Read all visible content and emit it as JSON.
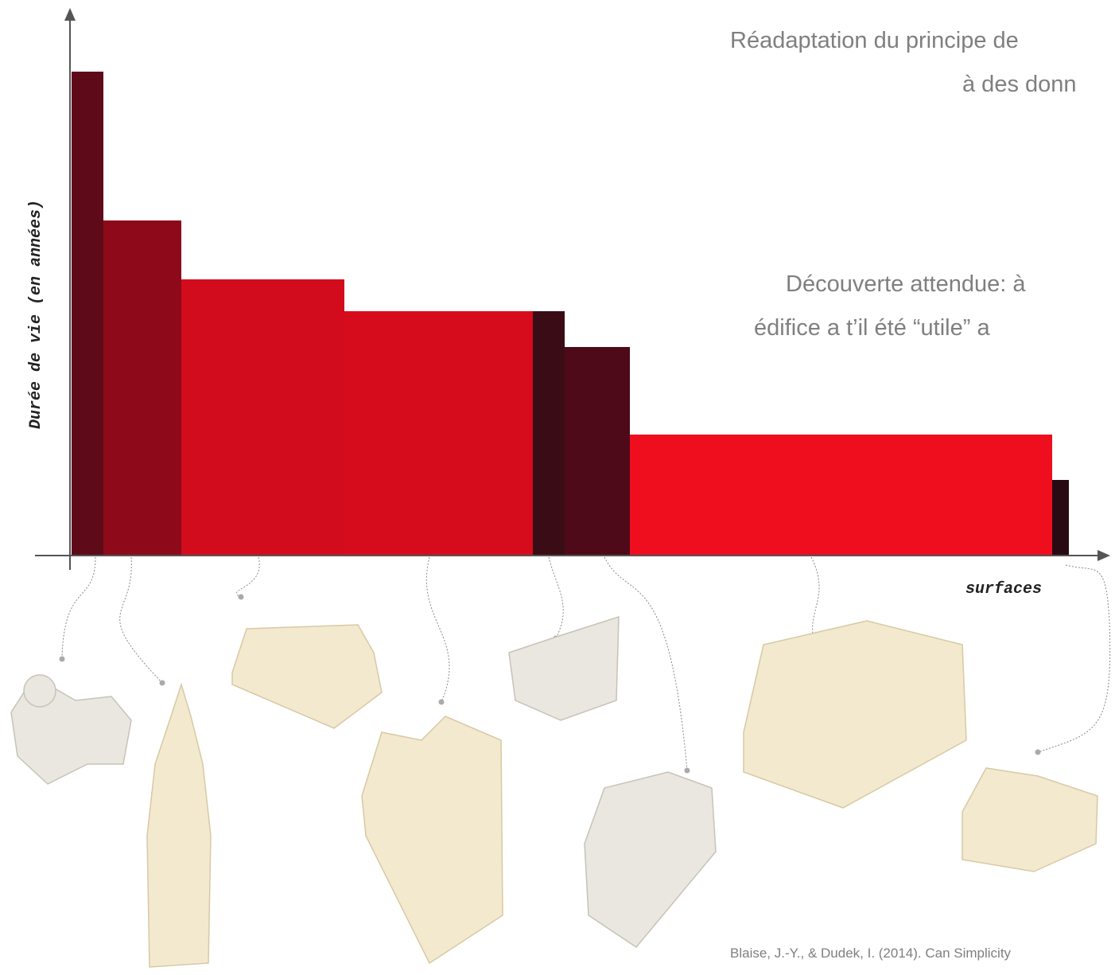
{
  "chart_data": {
    "type": "variable-width-bar",
    "x_label": "surfaces",
    "y_label": "Durée de vie (en années)",
    "values": [
      608,
      421,
      347,
      307,
      307,
      262,
      152,
      95
    ],
    "widths": [
      40,
      98,
      205,
      237,
      40,
      82,
      531,
      21
    ],
    "colors": [
      "#5e0a18",
      "#8e0a1a",
      "#d20c1c",
      "#d60c1c",
      "#3a0c16",
      "#4e0a18",
      "#ee0e1e",
      "#2a0a12"
    ],
    "xlim": [
      0,
      1300
    ],
    "ylim": [
      0,
      686
    ]
  },
  "notes": {
    "title": [
      "Réadaptation du principe de",
      "à des donn"
    ],
    "question": [
      "Découverte attendue: à",
      "édifice a t’il été “utile” a"
    ],
    "citation": "Blaise, J.-Y., & Dudek, I. (2014). Can Simplicity"
  }
}
